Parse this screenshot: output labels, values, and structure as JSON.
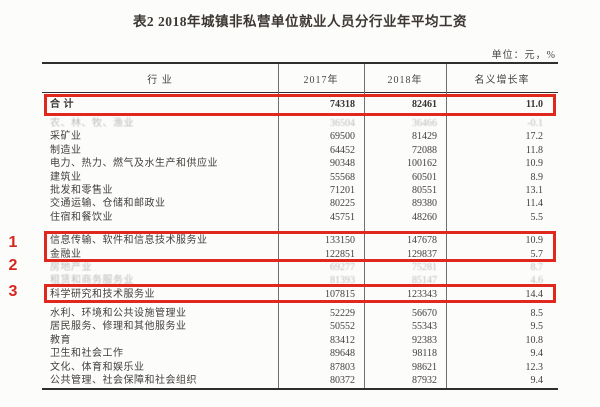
{
  "page": {
    "title": "表2  2018年城镇非私营单位就业人员分行业年平均工资",
    "unit_note": "单位：元，%"
  },
  "table": {
    "columns": [
      "行  业",
      "2017年",
      "2018年",
      "名义增长率"
    ],
    "rows": [
      {
        "industry": "合  计",
        "y2017": "74318",
        "y2018": "82461",
        "growth": "11.0",
        "style": "total"
      },
      {
        "industry": "农、林、牧、渔业",
        "y2017": "36504",
        "y2018": "36466",
        "growth": "-0.1",
        "style": "faded"
      },
      {
        "industry": "采矿业",
        "y2017": "69500",
        "y2018": "81429",
        "growth": "17.2",
        "style": "normal"
      },
      {
        "industry": "制造业",
        "y2017": "64452",
        "y2018": "72088",
        "growth": "11.8",
        "style": "normal"
      },
      {
        "industry": "电力、热力、燃气及水生产和供应业",
        "y2017": "90348",
        "y2018": "100162",
        "growth": "10.9",
        "style": "normal"
      },
      {
        "industry": "建筑业",
        "y2017": "55568",
        "y2018": "60501",
        "growth": "8.9",
        "style": "normal"
      },
      {
        "industry": "批发和零售业",
        "y2017": "71201",
        "y2018": "80551",
        "growth": "13.1",
        "style": "normal"
      },
      {
        "industry": "交通运输、仓储和邮政业",
        "y2017": "80225",
        "y2018": "89380",
        "growth": "11.4",
        "style": "normal"
      },
      {
        "industry": "住宿和餐饮业",
        "y2017": "45751",
        "y2018": "48260",
        "growth": "5.5",
        "style": "normal"
      },
      {
        "industry": "信息传输、软件和信息技术服务业",
        "y2017": "133150",
        "y2018": "147678",
        "growth": "10.9",
        "style": "normal",
        "gap": "lg"
      },
      {
        "industry": "金融业",
        "y2017": "122851",
        "y2018": "129837",
        "growth": "5.7",
        "style": "normal"
      },
      {
        "industry": "房地产业",
        "y2017": "69277",
        "y2018": "75281",
        "growth": "8.7",
        "style": "faded"
      },
      {
        "industry": "租赁和商务服务业",
        "y2017": "81393",
        "y2018": "85147",
        "growth": "4.6",
        "style": "faded"
      },
      {
        "industry": "科学研究和技术服务业",
        "y2017": "107815",
        "y2018": "123343",
        "growth": "14.4",
        "style": "normal"
      },
      {
        "industry": "水利、环境和公共设施管理业",
        "y2017": "52229",
        "y2018": "56670",
        "growth": "8.5",
        "style": "normal",
        "gap": "sm"
      },
      {
        "industry": "居民服务、修理和其他服务业",
        "y2017": "50552",
        "y2018": "55343",
        "growth": "9.5",
        "style": "normal"
      },
      {
        "industry": "教育",
        "y2017": "83412",
        "y2018": "92383",
        "growth": "10.8",
        "style": "normal"
      },
      {
        "industry": "卫生和社会工作",
        "y2017": "89648",
        "y2018": "98118",
        "growth": "9.4",
        "style": "normal"
      },
      {
        "industry": "文化、体育和娱乐业",
        "y2017": "87803",
        "y2018": "98621",
        "growth": "12.3",
        "style": "normal"
      },
      {
        "industry": "公共管理、社会保障和社会组织",
        "y2017": "80372",
        "y2018": "87932",
        "growth": "9.4",
        "style": "normal"
      }
    ]
  },
  "annotations": {
    "markers": [
      "1",
      "2",
      "3"
    ],
    "highlight_color": "#e0281e"
  }
}
